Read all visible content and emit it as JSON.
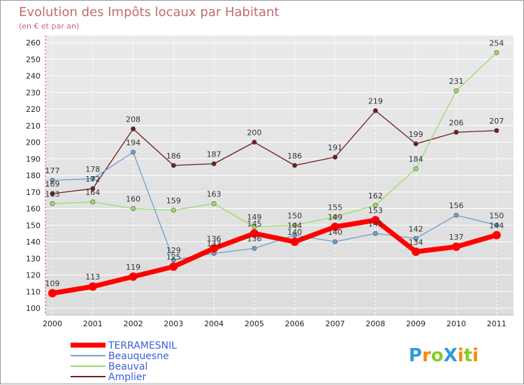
{
  "chart_data": {
    "type": "line",
    "title": "Evolution des Impôts locaux par Habitant",
    "subtitle": "(en € et par an)",
    "x": [
      "2000",
      "2001",
      "2002",
      "2003",
      "2004",
      "2005",
      "2006",
      "2007",
      "2008",
      "2009",
      "2010",
      "2011"
    ],
    "ylim": [
      100,
      260
    ],
    "yticks": [
      100,
      110,
      120,
      130,
      140,
      150,
      160,
      170,
      180,
      190,
      200,
      210,
      220,
      230,
      240,
      250,
      260
    ],
    "grid": true,
    "legend_position": "bottom-left",
    "series": [
      {
        "name": "TERRAMESNIL",
        "color": "#ff0000",
        "values": [
          109,
          113,
          119,
          125,
          136,
          145,
          140,
          149,
          153,
          134,
          137,
          144
        ]
      },
      {
        "name": "Beauquesne",
        "color": "#6e9fcf",
        "values": [
          177,
          178,
          194,
          129,
          133,
          136,
          144,
          140,
          145,
          142,
          156,
          150
        ]
      },
      {
        "name": "Beauval",
        "color": "#99dd66",
        "values": [
          163,
          164,
          160,
          159,
          163,
          149,
          150,
          155,
          162,
          184,
          231,
          254
        ]
      },
      {
        "name": "Amplier",
        "color": "#6b1f1f",
        "values": [
          169,
          172,
          208,
          186,
          187,
          200,
          186,
          191,
          219,
          199,
          206,
          207
        ]
      }
    ]
  },
  "logo": {
    "text": "ProXiti",
    "letters": [
      "P",
      "r",
      "o",
      "X",
      "i",
      "t",
      "i"
    ],
    "colors": [
      "#3399dd",
      "#ff8800",
      "#88cc22",
      "#3399dd",
      "#ff8800",
      "#88cc22",
      "#ff8800"
    ]
  }
}
